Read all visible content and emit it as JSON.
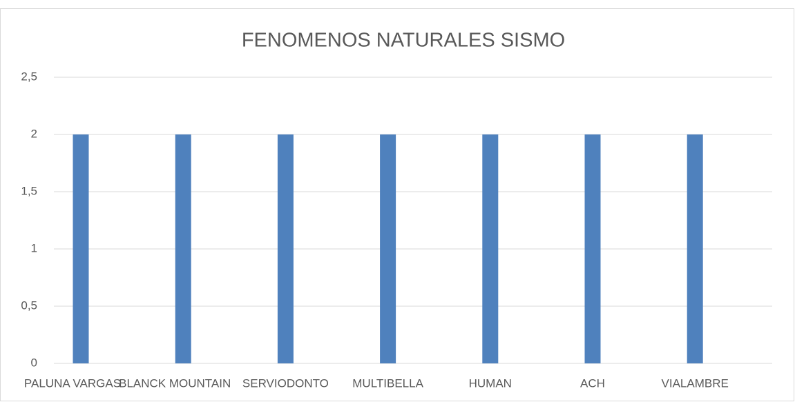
{
  "chart_data": {
    "type": "bar",
    "title": "FENOMENOS NATURALES SISMO",
    "categories": [
      "PALUNA VARGAS",
      "BLANCK MOUNTAIN",
      "SERVIODONTO",
      "MULTIBELLA",
      "HUMAN",
      "ACH",
      "VIALAMBRE"
    ],
    "values": [
      2,
      2,
      2,
      2,
      2,
      2,
      2
    ],
    "color": "#4f81bd",
    "ylim": [
      0,
      2.5
    ],
    "yticks": [
      0,
      {
        "value": 0.5,
        "label": "0,5"
      },
      1,
      {
        "value": 1.5,
        "label": "1,5"
      },
      2,
      {
        "value": 2.5,
        "label": "2,5"
      }
    ],
    "grid": true
  }
}
